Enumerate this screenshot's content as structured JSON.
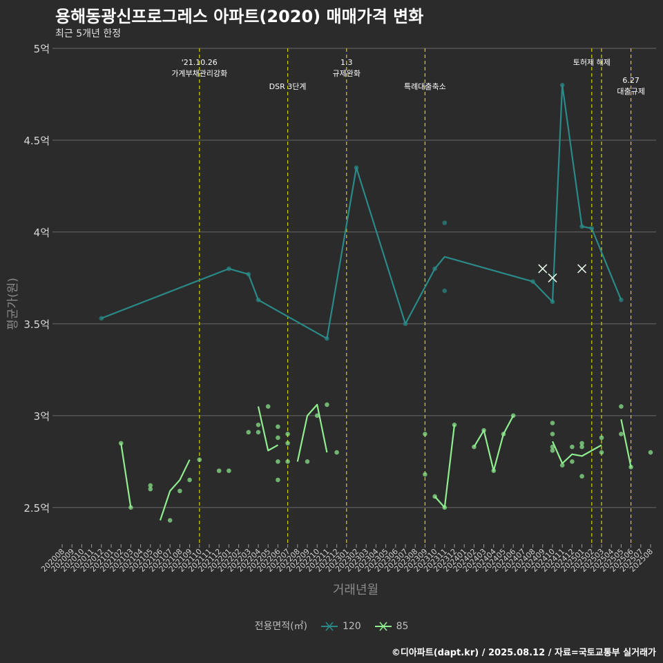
{
  "header": {
    "title": "용해동광신프로그레스 아파트(2020) 매매가격 변화",
    "subtitle": "최근 5개년 한정"
  },
  "caption": "©디아파트(dapt.kr) / 2025.08.12 / 자료=국토교통부 실거래가",
  "colors": {
    "background": "#2b2b2b",
    "s120": "#2a8a88",
    "s85": "#90ee90",
    "event": "#d4d400",
    "grid": "#6a6a6a"
  },
  "chart_data": {
    "type": "line",
    "xlabel": "거래년월",
    "ylabel": "평균가(원)",
    "ylim": [
      2.3,
      5.0
    ],
    "yticks": [
      {
        "v": 2.5,
        "label": "2.5억"
      },
      {
        "v": 3.0,
        "label": "3억"
      },
      {
        "v": 3.5,
        "label": "3.5억"
      },
      {
        "v": 4.0,
        "label": "4억"
      },
      {
        "v": 4.5,
        "label": "4.5억"
      },
      {
        "v": 5.0,
        "label": "5억"
      }
    ],
    "categories": [
      "202008",
      "202009",
      "202010",
      "202011",
      "202012",
      "202101",
      "202102",
      "202103",
      "202104",
      "202105",
      "202106",
      "202107",
      "202108",
      "202109",
      "202110",
      "202111",
      "202112",
      "202201",
      "202202",
      "202203",
      "202204",
      "202205",
      "202206",
      "202207",
      "202208",
      "202209",
      "202210",
      "202211",
      "202212",
      "202301",
      "202302",
      "202303",
      "202304",
      "202305",
      "202306",
      "202307",
      "202308",
      "202309",
      "202310",
      "202311",
      "202312",
      "202401",
      "202402",
      "202403",
      "202404",
      "202405",
      "202406",
      "202407",
      "202408",
      "202409",
      "202410",
      "202411",
      "202412",
      "202501",
      "202502",
      "202503",
      "202504",
      "202505",
      "202506",
      "202507",
      "202508"
    ],
    "legend_title": "전용면적(㎡)",
    "series": [
      {
        "name": "120",
        "color": "#2a8a88",
        "lines": [
          [
            [
              "202012",
              3.53
            ],
            [
              "202201",
              3.8
            ],
            [
              "202203",
              3.77
            ],
            [
              "202204",
              3.63
            ],
            [
              "202211",
              3.42
            ],
            [
              "202302",
              4.35
            ],
            [
              "202307",
              3.5
            ],
            [
              "202310",
              3.8
            ],
            [
              "202311",
              3.865
            ],
            [
              "202408",
              3.73
            ],
            [
              "202410",
              3.62
            ],
            [
              "202411",
              4.8
            ],
            [
              "202501",
              4.03
            ],
            [
              "202502",
              4.02
            ],
            [
              "202505",
              3.63
            ]
          ]
        ],
        "points": [
          [
            "202012",
            3.53
          ],
          [
            "202201",
            3.8
          ],
          [
            "202203",
            3.77
          ],
          [
            "202204",
            3.63
          ],
          [
            "202211",
            3.42
          ],
          [
            "202302",
            4.35
          ],
          [
            "202307",
            3.5
          ],
          [
            "202310",
            3.8
          ],
          [
            "202311",
            4.05
          ],
          [
            "202311",
            3.68
          ],
          [
            "202408",
            3.73
          ],
          [
            "202410",
            3.62
          ],
          [
            "202411",
            4.8
          ],
          [
            "202501",
            4.03
          ],
          [
            "202502",
            4.02
          ],
          [
            "202505",
            3.63
          ]
        ],
        "crosses": [
          [
            "202409",
            3.8
          ],
          [
            "202410",
            3.75
          ],
          [
            "202501",
            3.8
          ]
        ]
      },
      {
        "name": "85",
        "color": "#90ee90",
        "lines": [
          [
            [
              "202102",
              2.85
            ],
            [
              "202103",
              2.5
            ]
          ],
          [
            [
              "202106",
              2.43
            ],
            [
              "202107",
              2.59
            ],
            [
              "202108",
              2.65
            ],
            [
              "202109",
              2.76
            ]
          ],
          [
            [
              "202204",
              3.05
            ],
            [
              "202205",
              2.81
            ],
            [
              "202206",
              2.84
            ]
          ],
          [
            [
              "202208",
              2.75
            ],
            [
              "202209",
              3.0
            ],
            [
              "202210",
              3.06
            ],
            [
              "202211",
              2.8
            ]
          ],
          [
            [
              "202310",
              2.56
            ],
            [
              "202311",
              2.5
            ],
            [
              "202312",
              2.95
            ]
          ],
          [
            [
              "202402",
              2.83
            ],
            [
              "202403",
              2.92
            ],
            [
              "202404",
              2.7
            ],
            [
              "202405",
              2.9
            ],
            [
              "202406",
              3.0
            ]
          ],
          [
            [
              "202410",
              2.86
            ],
            [
              "202411",
              2.74
            ],
            [
              "202412",
              2.79
            ],
            [
              "202501",
              2.78
            ],
            [
              "202503",
              2.84
            ]
          ],
          [
            [
              "202505",
              2.98
            ],
            [
              "202506",
              2.72
            ]
          ]
        ],
        "points": [
          [
            "202102",
            2.85
          ],
          [
            "202103",
            2.5
          ],
          [
            "202105",
            2.62
          ],
          [
            "202105",
            2.6
          ],
          [
            "202107",
            2.43
          ],
          [
            "202108",
            2.59
          ],
          [
            "202109",
            2.65
          ],
          [
            "202110",
            2.76
          ],
          [
            "202112",
            2.7
          ],
          [
            "202201",
            2.7
          ],
          [
            "202203",
            2.91
          ],
          [
            "202204",
            2.95
          ],
          [
            "202204",
            2.91
          ],
          [
            "202205",
            3.05
          ],
          [
            "202206",
            2.94
          ],
          [
            "202206",
            2.88
          ],
          [
            "202206",
            2.75
          ],
          [
            "202206",
            2.65
          ],
          [
            "202207",
            2.9
          ],
          [
            "202207",
            2.85
          ],
          [
            "202207",
            2.75
          ],
          [
            "202209",
            2.75
          ],
          [
            "202210",
            3.0
          ],
          [
            "202211",
            3.06
          ],
          [
            "202212",
            2.8
          ],
          [
            "202309",
            2.9
          ],
          [
            "202309",
            2.68
          ],
          [
            "202310",
            2.56
          ],
          [
            "202311",
            2.5
          ],
          [
            "202312",
            2.95
          ],
          [
            "202402",
            2.83
          ],
          [
            "202403",
            2.92
          ],
          [
            "202404",
            2.7
          ],
          [
            "202405",
            2.9
          ],
          [
            "202406",
            3.0
          ],
          [
            "202410",
            2.96
          ],
          [
            "202410",
            2.9
          ],
          [
            "202410",
            2.83
          ],
          [
            "202410",
            2.81
          ],
          [
            "202411",
            2.73
          ],
          [
            "202412",
            2.83
          ],
          [
            "202412",
            2.75
          ],
          [
            "202501",
            2.85
          ],
          [
            "202501",
            2.83
          ],
          [
            "202501",
            2.67
          ],
          [
            "202503",
            2.88
          ],
          [
            "202503",
            2.8
          ],
          [
            "202505",
            3.05
          ],
          [
            "202505",
            2.9
          ],
          [
            "202506",
            2.72
          ],
          [
            "202508",
            2.8
          ]
        ],
        "crosses": []
      }
    ],
    "events": [
      {
        "x": "202110",
        "lines": [
          "'21.10.26",
          "가계부채관리강화"
        ],
        "row": 0
      },
      {
        "x": "202207",
        "lines": [
          "DSR 3단계"
        ],
        "row": 1
      },
      {
        "x": "202301",
        "lines": [
          "1.3",
          "규제완화"
        ],
        "row": 0
      },
      {
        "x": "202309",
        "lines": [
          "특례대출축소"
        ],
        "row": 1
      },
      {
        "x": "202502",
        "lines": [
          "토허제 해제"
        ],
        "row": 0
      },
      {
        "x": "202503",
        "lines": [],
        "row": 0
      },
      {
        "x": "202506",
        "lines": [
          "6.27",
          "대출규제"
        ],
        "row": 2
      }
    ]
  }
}
